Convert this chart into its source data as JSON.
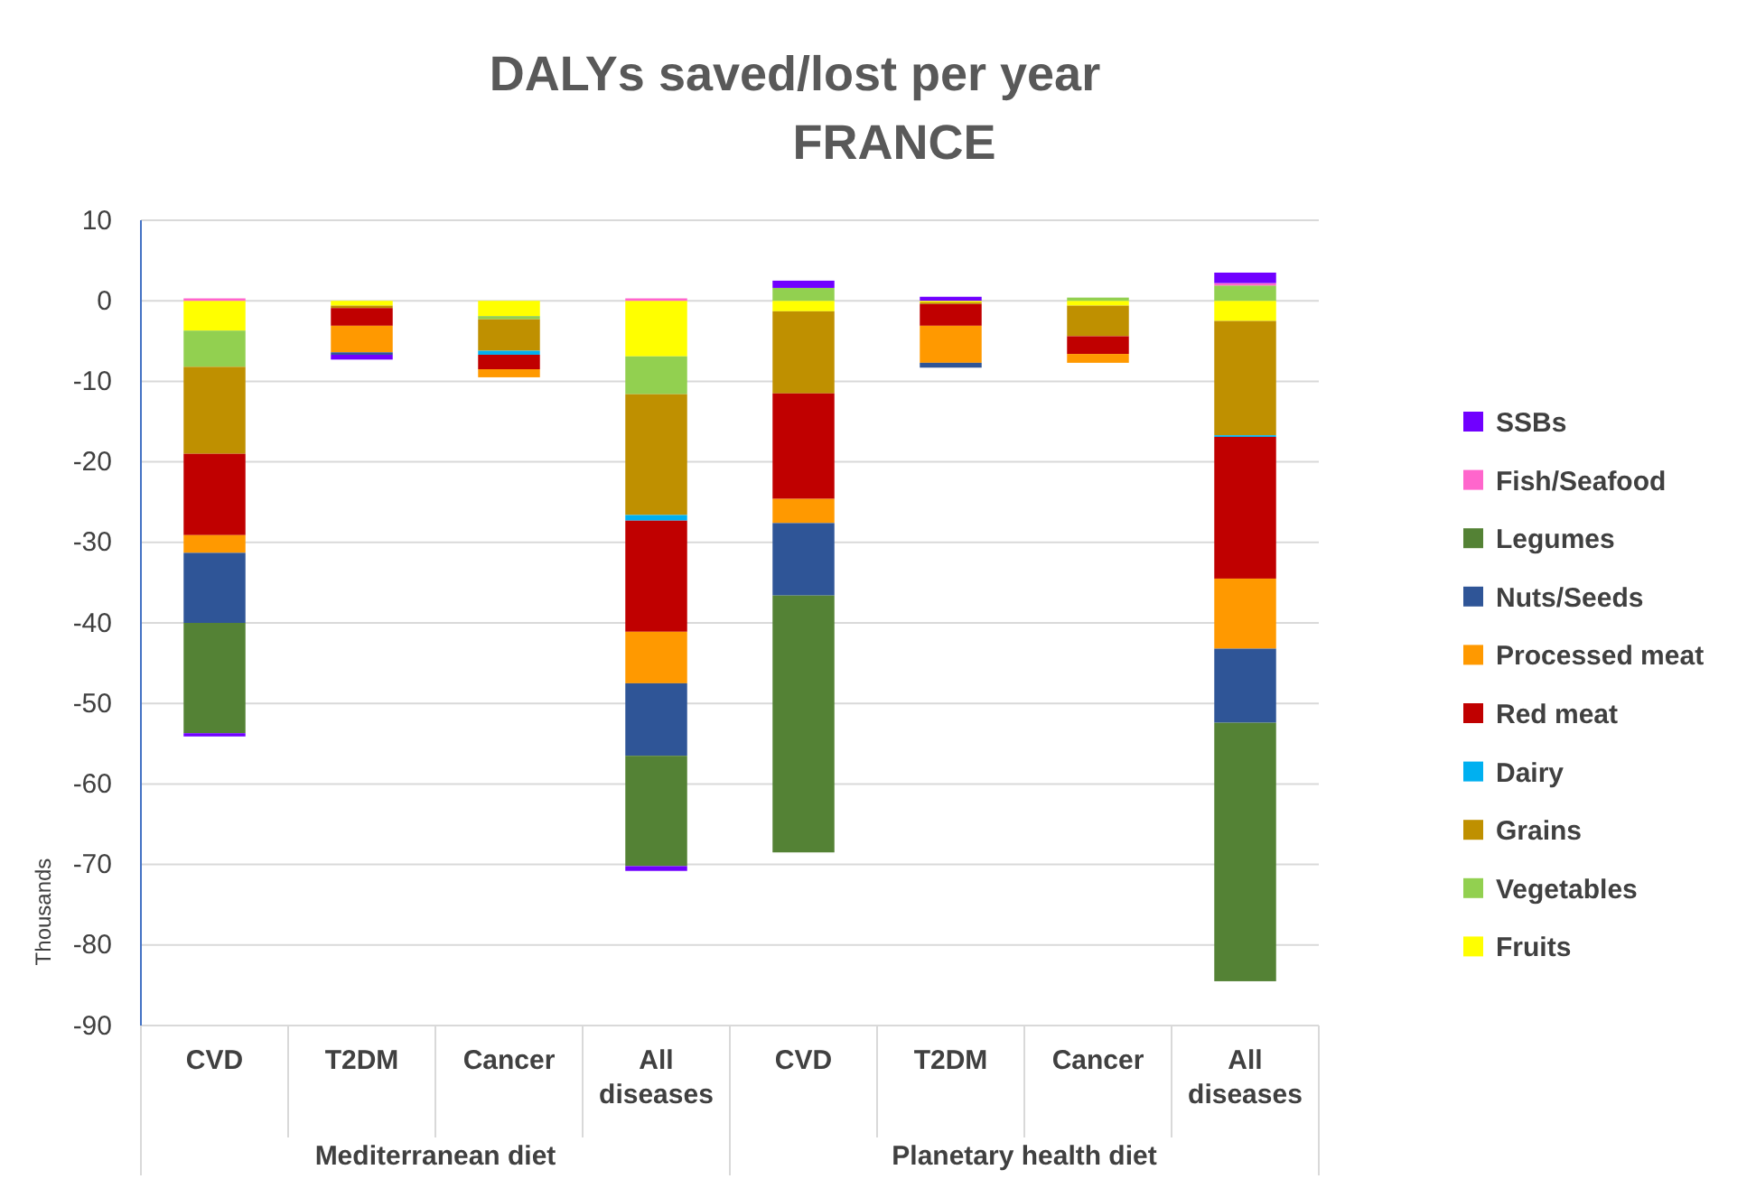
{
  "chart_data": {
    "type": "bar",
    "stacked": true,
    "title": "DALYs saved/lost per year",
    "subtitle": "FRANCE",
    "ylabel": "Thousands",
    "categories": [
      "CVD",
      "T2DM",
      "Cancer",
      "All diseases",
      "CVD",
      "T2DM",
      "Cancer",
      "All diseases"
    ],
    "annotations": [
      "Mediterranean diet",
      "Planetary health diet"
    ],
    "ylim": [
      -90,
      10
    ],
    "yticks": [
      -90,
      -80,
      -70,
      -60,
      -50,
      -40,
      -30,
      -20,
      -10,
      0,
      10
    ],
    "grid": "y",
    "legend": "right",
    "series": [
      {
        "name": "Fruits",
        "color": "#ffff00",
        "values": [
          -3.7,
          -0.6,
          -1.9,
          -6.9,
          -1.3,
          -0.2,
          -0.6,
          -2.5
        ]
      },
      {
        "name": "Vegetables",
        "color": "#92d050",
        "values": [
          -4.5,
          0,
          -0.4,
          -4.7,
          1.6,
          0,
          0.4,
          1.9
        ]
      },
      {
        "name": "Grains",
        "color": "#bf9000",
        "values": [
          -10.8,
          -0.3,
          -3.9,
          -15.0,
          -10.2,
          -0.2,
          -3.8,
          -14.2
        ]
      },
      {
        "name": "Dairy",
        "color": "#00b0f0",
        "values": [
          0,
          0,
          -0.5,
          -0.7,
          0,
          0,
          0,
          -0.2
        ]
      },
      {
        "name": "Red meat",
        "color": "#c00000",
        "values": [
          -10.1,
          -2.2,
          -1.8,
          -13.8,
          -13.1,
          -2.7,
          -2.2,
          -17.6
        ]
      },
      {
        "name": "Processed meat",
        "color": "#ff9900",
        "values": [
          -2.2,
          -3.3,
          -1.0,
          -6.4,
          -3.0,
          -4.6,
          -1.1,
          -8.7
        ]
      },
      {
        "name": "Nuts/Seeds",
        "color": "#2f5597",
        "values": [
          -8.7,
          -0.3,
          0,
          -9.0,
          -9.0,
          -0.6,
          0,
          -9.2
        ]
      },
      {
        "name": "Legumes",
        "color": "#548235",
        "values": [
          -13.7,
          0,
          0,
          -13.7,
          -31.9,
          0,
          0,
          -32.1
        ]
      },
      {
        "name": "Fish/Seafood",
        "color": "#ff66cc",
        "values": [
          0.3,
          0,
          0,
          0.3,
          0,
          0,
          0,
          0.3
        ]
      },
      {
        "name": "SSBs",
        "color": "#7000ff",
        "values": [
          -0.4,
          -0.6,
          0,
          -0.6,
          0.9,
          0.5,
          0,
          1.3
        ]
      }
    ]
  }
}
